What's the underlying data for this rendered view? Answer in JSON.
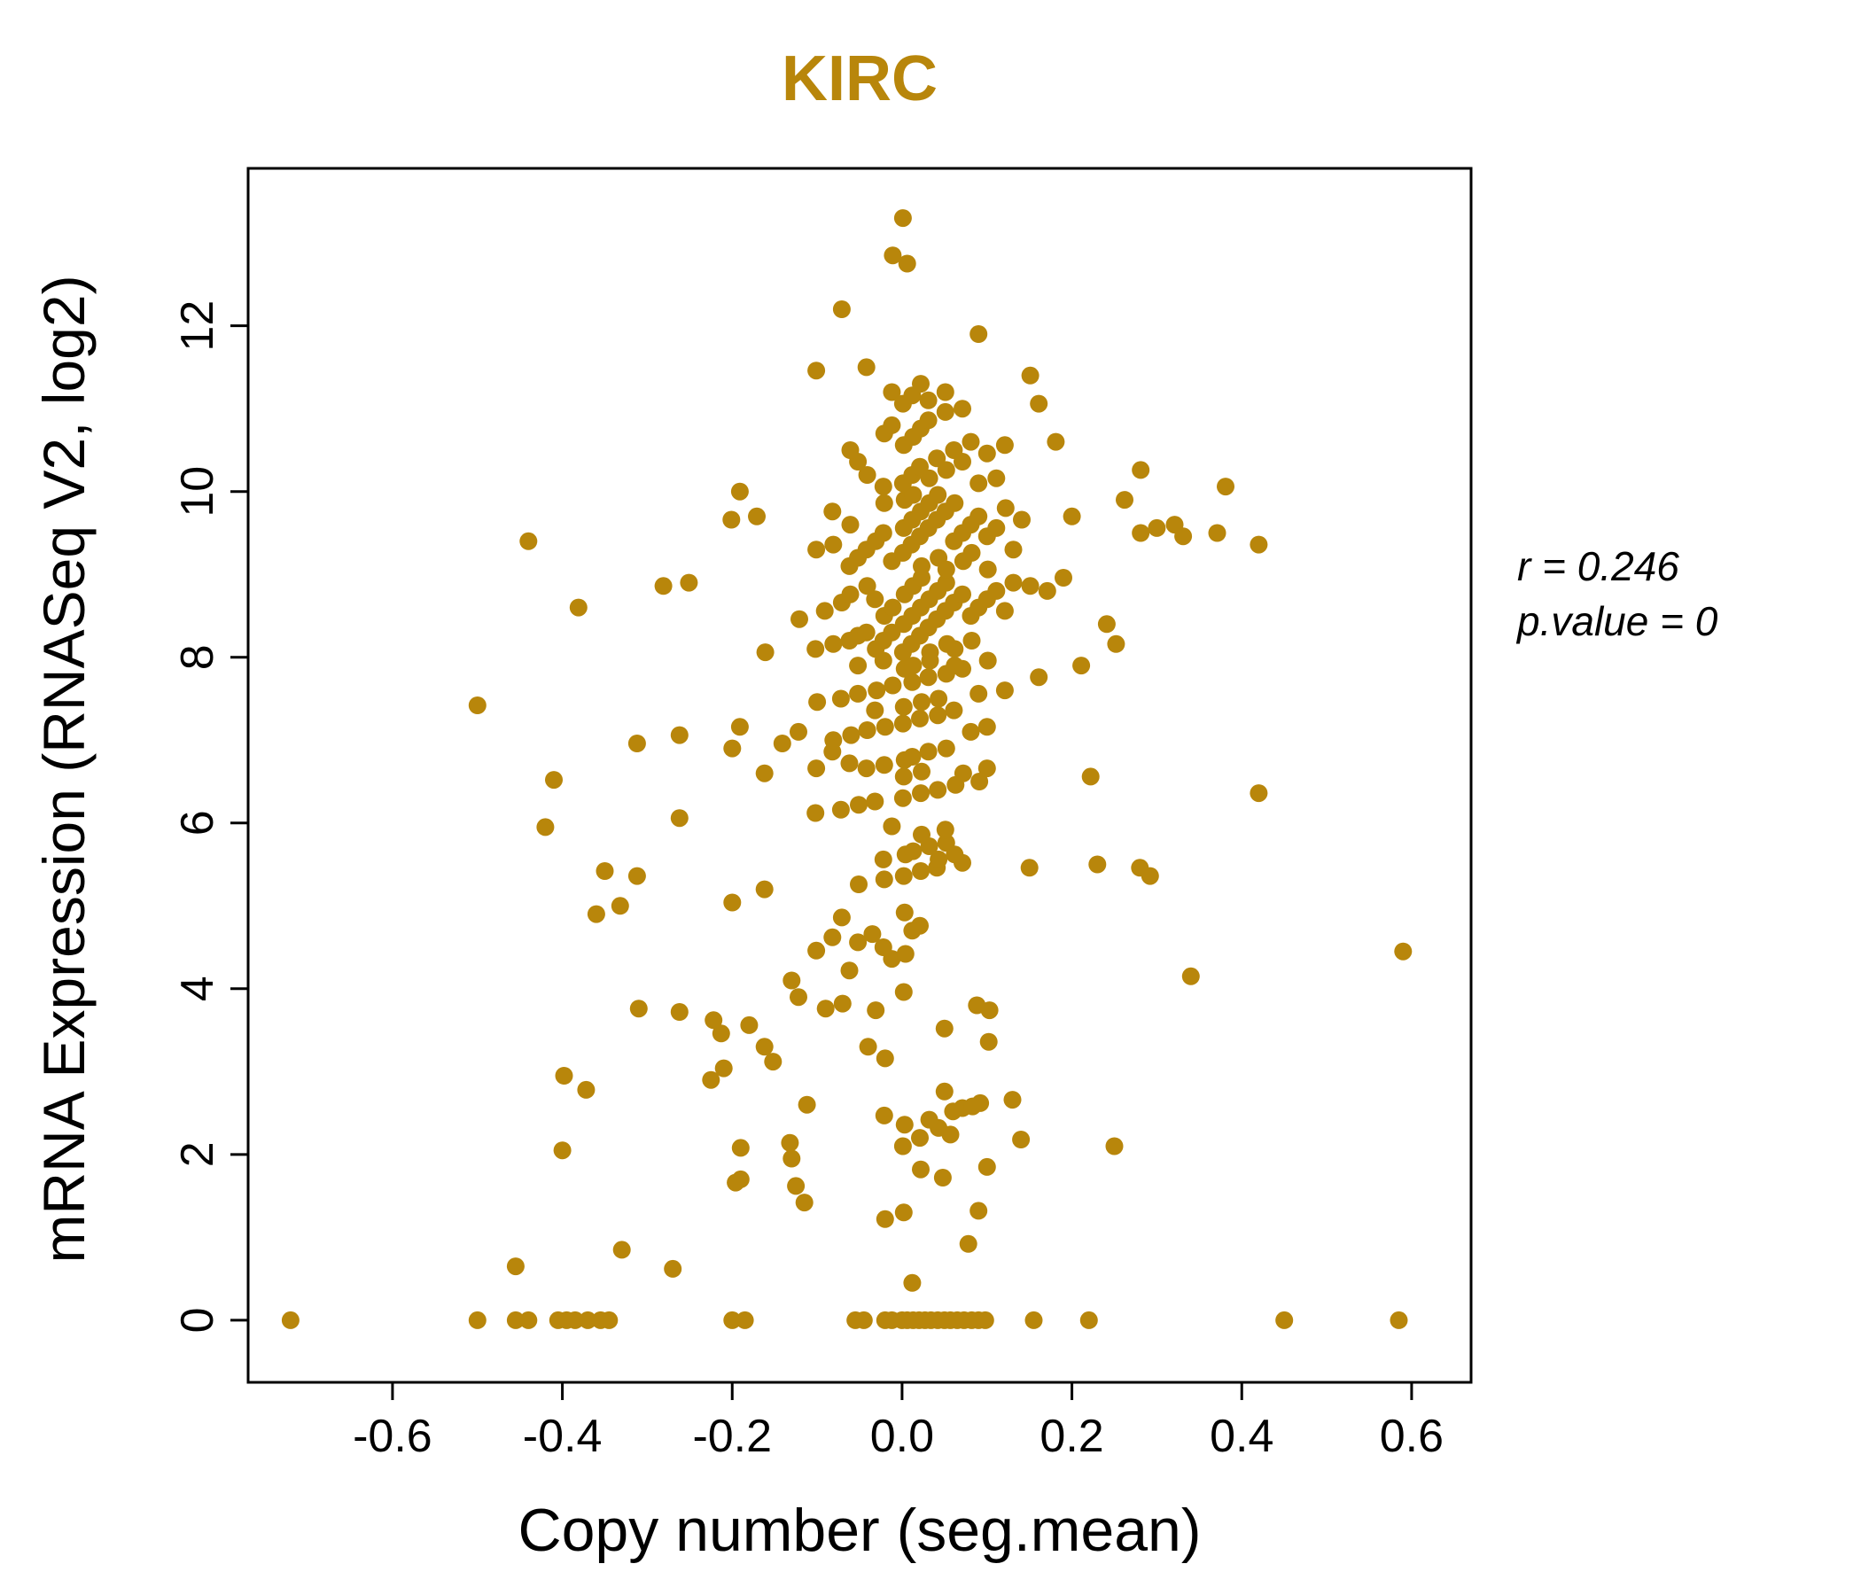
{
  "chart_data": {
    "type": "scatter",
    "title": "KIRC",
    "xlabel": "Copy number (seg.mean)",
    "ylabel": "mRNA Expression (RNASeq V2, log2)",
    "xlim": [
      -0.77,
      0.67
    ],
    "ylim": [
      -0.75,
      13.9
    ],
    "xticks": [
      -0.6,
      -0.4,
      -0.2,
      0.0,
      0.2,
      0.4,
      0.6
    ],
    "xtick_labels": [
      "-0.6",
      "-0.4",
      "-0.2",
      "0.0",
      "0.2",
      "0.4",
      "0.6"
    ],
    "yticks": [
      0,
      2,
      4,
      6,
      8,
      10,
      12
    ],
    "ytick_labels": [
      "0",
      "2",
      "4",
      "6",
      "8",
      "10",
      "12"
    ],
    "grid": false,
    "legend": null,
    "point_color": "#B8860B",
    "title_color": "#B8860B",
    "correlation_r": 0.246,
    "p_value": 0,
    "annotations": [
      "r = 0.246",
      "p.value = 0"
    ],
    "points": [
      [
        -0.72,
        0
      ],
      [
        -0.5,
        0
      ],
      [
        -0.455,
        0
      ],
      [
        -0.44,
        0
      ],
      [
        -0.405,
        0
      ],
      [
        -0.395,
        0
      ],
      [
        -0.385,
        0
      ],
      [
        -0.37,
        0
      ],
      [
        -0.355,
        0
      ],
      [
        -0.345,
        0
      ],
      [
        -0.2,
        0
      ],
      [
        -0.185,
        0
      ],
      [
        -0.055,
        0
      ],
      [
        -0.045,
        0
      ],
      [
        -0.02,
        0
      ],
      [
        -0.012,
        0
      ],
      [
        0.0,
        0
      ],
      [
        0.006,
        0
      ],
      [
        0.013,
        0
      ],
      [
        0.02,
        0
      ],
      [
        0.027,
        0
      ],
      [
        0.034,
        0
      ],
      [
        0.042,
        0
      ],
      [
        0.05,
        0
      ],
      [
        0.057,
        0
      ],
      [
        0.065,
        0
      ],
      [
        0.073,
        0
      ],
      [
        0.082,
        0
      ],
      [
        0.09,
        0
      ],
      [
        0.098,
        0
      ],
      [
        0.155,
        0
      ],
      [
        0.22,
        0
      ],
      [
        0.45,
        0
      ],
      [
        0.585,
        0
      ],
      [
        0.012,
        0.45
      ],
      [
        -0.27,
        0.62
      ],
      [
        -0.455,
        0.65
      ],
      [
        -0.33,
        0.85
      ],
      [
        0.078,
        0.92
      ],
      [
        -0.02,
        1.22
      ],
      [
        0.002,
        1.3
      ],
      [
        0.09,
        1.32
      ],
      [
        -0.115,
        1.42
      ],
      [
        -0.125,
        1.62
      ],
      [
        -0.19,
        1.7
      ],
      [
        0.1,
        1.85
      ],
      [
        -0.13,
        1.95
      ],
      [
        0.048,
        1.72
      ],
      [
        0.022,
        1.82
      ],
      [
        -0.196,
        1.66
      ],
      [
        -0.4,
        2.05
      ],
      [
        -0.19,
        2.08
      ],
      [
        -0.132,
        2.14
      ],
      [
        0.001,
        2.1
      ],
      [
        0.021,
        2.2
      ],
      [
        0.043,
        2.32
      ],
      [
        0.057,
        2.24
      ],
      [
        0.25,
        2.1
      ],
      [
        0.14,
        2.18
      ],
      [
        0.003,
        2.36
      ],
      [
        0.032,
        2.42
      ],
      [
        -0.021,
        2.47
      ],
      [
        0.06,
        2.52
      ],
      [
        0.071,
        2.56
      ],
      [
        0.092,
        2.62
      ],
      [
        0.13,
        2.66
      ],
      [
        -0.112,
        2.6
      ],
      [
        -0.398,
        2.95
      ],
      [
        -0.372,
        2.78
      ],
      [
        -0.225,
        2.9
      ],
      [
        0.05,
        2.76
      ],
      [
        0.083,
        2.58
      ],
      [
        -0.21,
        3.04
      ],
      [
        -0.152,
        3.12
      ],
      [
        -0.02,
        3.16
      ],
      [
        -0.04,
        3.3
      ],
      [
        0.102,
        3.36
      ],
      [
        -0.213,
        3.46
      ],
      [
        -0.162,
        3.3
      ],
      [
        0.05,
        3.52
      ],
      [
        -0.31,
        3.76
      ],
      [
        -0.262,
        3.72
      ],
      [
        -0.09,
        3.76
      ],
      [
        -0.07,
        3.82
      ],
      [
        -0.031,
        3.74
      ],
      [
        0.088,
        3.8
      ],
      [
        0.103,
        3.74
      ],
      [
        -0.18,
        3.56
      ],
      [
        -0.122,
        3.9
      ],
      [
        0.002,
        3.96
      ],
      [
        -0.222,
        3.62
      ],
      [
        -0.13,
        4.1
      ],
      [
        -0.062,
        4.22
      ],
      [
        -0.012,
        4.36
      ],
      [
        0.004,
        4.42
      ],
      [
        -0.022,
        4.5
      ],
      [
        0.34,
        4.15
      ],
      [
        0.59,
        4.45
      ],
      [
        -0.052,
        4.56
      ],
      [
        -0.082,
        4.62
      ],
      [
        -0.035,
        4.66
      ],
      [
        0.021,
        4.76
      ],
      [
        -0.36,
        4.9
      ],
      [
        -0.332,
        5.0
      ],
      [
        -0.2,
        5.04
      ],
      [
        -0.071,
        4.86
      ],
      [
        0.003,
        4.92
      ],
      [
        0.012,
        4.7
      ],
      [
        -0.101,
        4.46
      ],
      [
        -0.35,
        5.42
      ],
      [
        -0.312,
        5.36
      ],
      [
        -0.162,
        5.2
      ],
      [
        -0.051,
        5.26
      ],
      [
        -0.021,
        5.32
      ],
      [
        0.002,
        5.36
      ],
      [
        0.022,
        5.42
      ],
      [
        0.041,
        5.46
      ],
      [
        0.071,
        5.52
      ],
      [
        0.23,
        5.5
      ],
      [
        0.28,
        5.46
      ],
      [
        0.292,
        5.36
      ],
      [
        -0.022,
        5.56
      ],
      [
        0.004,
        5.62
      ],
      [
        0.013,
        5.66
      ],
      [
        0.032,
        5.72
      ],
      [
        0.052,
        5.76
      ],
      [
        0.15,
        5.46
      ],
      [
        0.023,
        5.86
      ],
      [
        0.051,
        5.92
      ],
      [
        -0.012,
        5.96
      ],
      [
        0.043,
        5.56
      ],
      [
        0.062,
        5.62
      ],
      [
        -0.42,
        5.95
      ],
      [
        -0.41,
        6.52
      ],
      [
        -0.262,
        6.06
      ],
      [
        -0.102,
        6.12
      ],
      [
        -0.072,
        6.16
      ],
      [
        -0.051,
        6.22
      ],
      [
        -0.032,
        6.26
      ],
      [
        0.001,
        6.3
      ],
      [
        0.022,
        6.36
      ],
      [
        0.042,
        6.4
      ],
      [
        0.063,
        6.46
      ],
      [
        0.091,
        6.5
      ],
      [
        0.42,
        6.36
      ],
      [
        0.222,
        6.56
      ],
      [
        -0.162,
        6.6
      ],
      [
        -0.101,
        6.66
      ],
      [
        -0.062,
        6.72
      ],
      [
        -0.042,
        6.66
      ],
      [
        -0.021,
        6.7
      ],
      [
        0.003,
        6.76
      ],
      [
        0.012,
        6.8
      ],
      [
        0.031,
        6.86
      ],
      [
        0.052,
        6.9
      ],
      [
        0.072,
        6.6
      ],
      [
        0.1,
        6.66
      ],
      [
        -0.2,
        6.9
      ],
      [
        -0.141,
        6.96
      ],
      [
        -0.312,
        6.96
      ],
      [
        0.002,
        6.56
      ],
      [
        0.023,
        6.62
      ],
      [
        -0.082,
        6.86
      ],
      [
        -0.5,
        7.42
      ],
      [
        -0.262,
        7.06
      ],
      [
        -0.122,
        7.1
      ],
      [
        -0.081,
        7.0
      ],
      [
        -0.06,
        7.06
      ],
      [
        -0.041,
        7.12
      ],
      [
        -0.02,
        7.16
      ],
      [
        0.001,
        7.2
      ],
      [
        0.021,
        7.26
      ],
      [
        0.042,
        7.3
      ],
      [
        0.061,
        7.36
      ],
      [
        0.081,
        7.1
      ],
      [
        0.1,
        7.16
      ],
      [
        -0.191,
        7.16
      ],
      [
        -0.1,
        7.46
      ],
      [
        -0.072,
        7.5
      ],
      [
        -0.052,
        7.56
      ],
      [
        -0.03,
        7.6
      ],
      [
        -0.011,
        7.66
      ],
      [
        0.012,
        7.7
      ],
      [
        0.031,
        7.76
      ],
      [
        0.052,
        7.8
      ],
      [
        0.071,
        7.86
      ],
      [
        0.09,
        7.56
      ],
      [
        0.121,
        7.6
      ],
      [
        0.161,
        7.76
      ],
      [
        -0.032,
        7.36
      ],
      [
        0.002,
        7.4
      ],
      [
        0.023,
        7.46
      ],
      [
        0.043,
        7.5
      ],
      [
        0.062,
        7.9
      ],
      [
        -0.052,
        7.9
      ],
      [
        -0.022,
        7.96
      ],
      [
        0.003,
        7.86
      ],
      [
        0.013,
        7.9
      ],
      [
        0.033,
        7.96
      ],
      [
        0.101,
        7.96
      ],
      [
        0.211,
        7.9
      ],
      [
        -0.161,
        8.06
      ],
      [
        -0.102,
        8.1
      ],
      [
        -0.081,
        8.16
      ],
      [
        -0.062,
        8.2
      ],
      [
        -0.052,
        8.26
      ],
      [
        -0.042,
        8.3
      ],
      [
        -0.031,
        8.1
      ],
      [
        -0.022,
        8.2
      ],
      [
        -0.012,
        8.3
      ],
      [
        0.001,
        8.06
      ],
      [
        0.002,
        8.4
      ],
      [
        0.011,
        8.16
      ],
      [
        0.012,
        8.5
      ],
      [
        0.021,
        8.26
      ],
      [
        0.022,
        8.6
      ],
      [
        0.031,
        8.36
      ],
      [
        0.032,
        8.7
      ],
      [
        0.041,
        8.46
      ],
      [
        0.042,
        8.8
      ],
      [
        0.051,
        8.56
      ],
      [
        0.052,
        8.9
      ],
      [
        0.061,
        8.66
      ],
      [
        0.071,
        8.76
      ],
      [
        0.081,
        8.5
      ],
      [
        0.09,
        8.6
      ],
      [
        0.1,
        8.7
      ],
      [
        0.111,
        8.8
      ],
      [
        0.121,
        8.56
      ],
      [
        0.131,
        8.9
      ],
      [
        0.151,
        8.86
      ],
      [
        0.171,
        8.8
      ],
      [
        0.19,
        8.96
      ],
      [
        -0.121,
        8.46
      ],
      [
        -0.091,
        8.56
      ],
      [
        -0.071,
        8.66
      ],
      [
        -0.061,
        8.76
      ],
      [
        -0.281,
        8.86
      ],
      [
        -0.381,
        8.6
      ],
      [
        -0.251,
        8.9
      ],
      [
        0.062,
        8.1
      ],
      [
        0.082,
        8.2
      ],
      [
        0.241,
        8.4
      ],
      [
        0.252,
        8.16
      ],
      [
        0.003,
        8.76
      ],
      [
        0.013,
        8.86
      ],
      [
        0.023,
        8.96
      ],
      [
        -0.021,
        8.5
      ],
      [
        -0.011,
        8.6
      ],
      [
        -0.032,
        8.7
      ],
      [
        -0.041,
        8.86
      ],
      [
        0.033,
        8.06
      ],
      [
        0.053,
        8.16
      ],
      [
        -0.44,
        9.4
      ],
      [
        -0.201,
        9.66
      ],
      [
        -0.171,
        9.7
      ],
      [
        -0.101,
        9.3
      ],
      [
        -0.081,
        9.36
      ],
      [
        -0.062,
        9.1
      ],
      [
        -0.052,
        9.2
      ],
      [
        -0.042,
        9.3
      ],
      [
        -0.031,
        9.4
      ],
      [
        -0.022,
        9.5
      ],
      [
        -0.012,
        9.16
      ],
      [
        0.001,
        9.26
      ],
      [
        0.002,
        9.56
      ],
      [
        0.011,
        9.36
      ],
      [
        0.012,
        9.66
      ],
      [
        0.021,
        9.46
      ],
      [
        0.022,
        9.76
      ],
      [
        0.031,
        9.56
      ],
      [
        0.032,
        9.86
      ],
      [
        0.041,
        9.66
      ],
      [
        0.042,
        9.96
      ],
      [
        0.051,
        9.76
      ],
      [
        0.061,
        9.4
      ],
      [
        0.062,
        9.86
      ],
      [
        0.071,
        9.5
      ],
      [
        0.081,
        9.6
      ],
      [
        0.09,
        9.7
      ],
      [
        0.1,
        9.46
      ],
      [
        0.111,
        9.56
      ],
      [
        0.131,
        9.3
      ],
      [
        0.141,
        9.66
      ],
      [
        0.2,
        9.7
      ],
      [
        0.281,
        9.5
      ],
      [
        0.3,
        9.56
      ],
      [
        0.321,
        9.6
      ],
      [
        0.331,
        9.46
      ],
      [
        0.371,
        9.5
      ],
      [
        0.42,
        9.36
      ],
      [
        0.262,
        9.9
      ],
      [
        0.003,
        9.9
      ],
      [
        0.013,
        9.96
      ],
      [
        -0.021,
        9.86
      ],
      [
        -0.191,
        10.0
      ],
      [
        0.023,
        9.1
      ],
      [
        0.043,
        9.2
      ],
      [
        0.052,
        9.06
      ],
      [
        0.072,
        9.16
      ],
      [
        0.082,
        9.26
      ],
      [
        0.101,
        9.06
      ],
      [
        -0.061,
        9.6
      ],
      [
        -0.082,
        9.76
      ],
      [
        0.122,
        9.8
      ],
      [
        -0.022,
        10.06
      ],
      [
        0.001,
        10.1
      ],
      [
        0.012,
        10.2
      ],
      [
        0.021,
        10.3
      ],
      [
        0.032,
        10.16
      ],
      [
        0.041,
        10.4
      ],
      [
        0.052,
        10.26
      ],
      [
        0.061,
        10.5
      ],
      [
        0.071,
        10.36
      ],
      [
        0.081,
        10.6
      ],
      [
        -0.041,
        10.2
      ],
      [
        -0.052,
        10.36
      ],
      [
        -0.061,
        10.5
      ],
      [
        0.1,
        10.46
      ],
      [
        0.121,
        10.56
      ],
      [
        0.181,
        10.6
      ],
      [
        0.281,
        10.26
      ],
      [
        0.002,
        10.56
      ],
      [
        0.013,
        10.66
      ],
      [
        0.022,
        10.76
      ],
      [
        0.031,
        10.86
      ],
      [
        -0.021,
        10.7
      ],
      [
        -0.012,
        10.8
      ],
      [
        0.051,
        10.96
      ],
      [
        0.381,
        10.06
      ],
      [
        0.09,
        10.1
      ],
      [
        0.111,
        10.16
      ],
      [
        -0.101,
        11.46
      ],
      [
        -0.042,
        11.5
      ],
      [
        0.001,
        11.06
      ],
      [
        0.012,
        11.16
      ],
      [
        0.031,
        11.1
      ],
      [
        0.051,
        11.2
      ],
      [
        0.071,
        11.0
      ],
      [
        0.151,
        11.4
      ],
      [
        0.161,
        11.06
      ],
      [
        0.022,
        11.3
      ],
      [
        -0.012,
        11.2
      ],
      [
        -0.071,
        12.2
      ],
      [
        0.09,
        11.9
      ],
      [
        0.001,
        13.3
      ],
      [
        -0.011,
        12.85
      ],
      [
        0.006,
        12.75
      ]
    ]
  }
}
